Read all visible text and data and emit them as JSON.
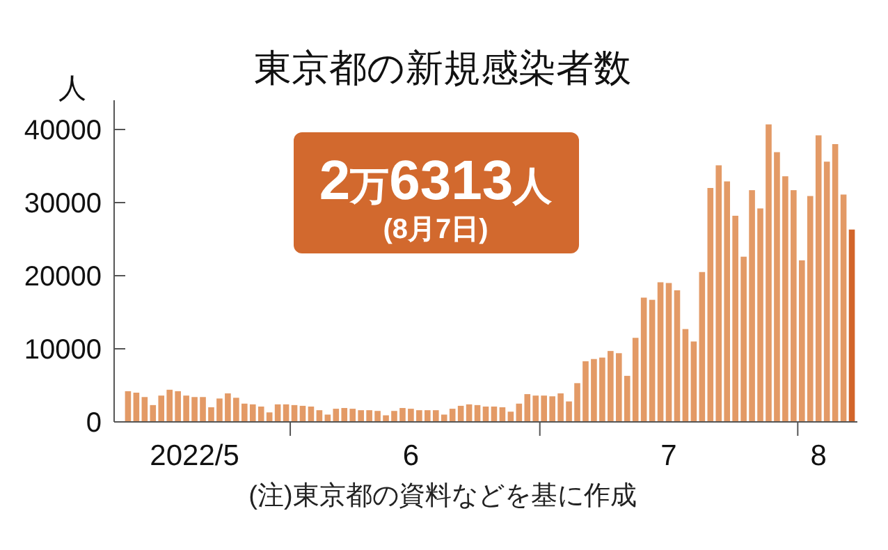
{
  "chart_data": {
    "type": "bar",
    "title": "東京都の新規感染者数",
    "ylabel": "人",
    "x": [
      "2022-05-12",
      "2022-05-13",
      "2022-05-14",
      "2022-05-15",
      "2022-05-16",
      "2022-05-17",
      "2022-05-18",
      "2022-05-19",
      "2022-05-20",
      "2022-05-21",
      "2022-05-22",
      "2022-05-23",
      "2022-05-24",
      "2022-05-25",
      "2022-05-26",
      "2022-05-27",
      "2022-05-28",
      "2022-05-29",
      "2022-05-30",
      "2022-05-31",
      "2022-06-01",
      "2022-06-02",
      "2022-06-03",
      "2022-06-04",
      "2022-06-05",
      "2022-06-06",
      "2022-06-07",
      "2022-06-08",
      "2022-06-09",
      "2022-06-10",
      "2022-06-11",
      "2022-06-12",
      "2022-06-13",
      "2022-06-14",
      "2022-06-15",
      "2022-06-16",
      "2022-06-17",
      "2022-06-18",
      "2022-06-19",
      "2022-06-20",
      "2022-06-21",
      "2022-06-22",
      "2022-06-23",
      "2022-06-24",
      "2022-06-25",
      "2022-06-26",
      "2022-06-27",
      "2022-06-28",
      "2022-06-29",
      "2022-06-30",
      "2022-07-01",
      "2022-07-02",
      "2022-07-03",
      "2022-07-04",
      "2022-07-05",
      "2022-07-06",
      "2022-07-07",
      "2022-07-08",
      "2022-07-09",
      "2022-07-10",
      "2022-07-11",
      "2022-07-12",
      "2022-07-13",
      "2022-07-14",
      "2022-07-15",
      "2022-07-16",
      "2022-07-17",
      "2022-07-18",
      "2022-07-19",
      "2022-07-20",
      "2022-07-21",
      "2022-07-22",
      "2022-07-23",
      "2022-07-24",
      "2022-07-25",
      "2022-07-26",
      "2022-07-27",
      "2022-07-28",
      "2022-07-29",
      "2022-07-30",
      "2022-07-31",
      "2022-08-01",
      "2022-08-02",
      "2022-08-03",
      "2022-08-04",
      "2022-08-05",
      "2022-08-06",
      "2022-08-07"
    ],
    "values": [
      4200,
      4000,
      3400,
      2300,
      3600,
      4400,
      4200,
      3600,
      3400,
      3400,
      2000,
      3200,
      3900,
      3300,
      2500,
      2400,
      2100,
      1300,
      2400,
      2400,
      2300,
      2200,
      2100,
      1600,
      1000,
      1800,
      1900,
      1800,
      1600,
      1600,
      1500,
      900,
      1500,
      1900,
      1800,
      1600,
      1600,
      1600,
      1000,
      1800,
      2200,
      2400,
      2300,
      2100,
      2100,
      2000,
      1400,
      2500,
      3800,
      3600,
      3600,
      3500,
      3900,
      2800,
      5300,
      8300,
      8600,
      8800,
      9700,
      9400,
      6300,
      11500,
      17000,
      16700,
      19100,
      19000,
      18000,
      12700,
      11000,
      20500,
      32000,
      35100,
      32900,
      28200,
      22600,
      31700,
      29200,
      40700,
      36900,
      33600,
      31700,
      22100,
      30900,
      39200,
      35600,
      38000,
      31100,
      26313
    ],
    "colors": [
      "#e39a66",
      "#e39a66",
      "#e39a66",
      "#e39a66",
      "#e39a66",
      "#e39a66",
      "#e39a66",
      "#e39a66",
      "#e39a66",
      "#e39a66",
      "#e39a66",
      "#e39a66",
      "#e39a66",
      "#e39a66",
      "#e39a66",
      "#e39a66",
      "#e39a66",
      "#e39a66",
      "#e39a66",
      "#e39a66",
      "#e39a66",
      "#e39a66",
      "#e39a66",
      "#e39a66",
      "#e39a66",
      "#e39a66",
      "#e39a66",
      "#e39a66",
      "#e39a66",
      "#e39a66",
      "#e39a66",
      "#e39a66",
      "#e39a66",
      "#e39a66",
      "#e39a66",
      "#e39a66",
      "#e39a66",
      "#e39a66",
      "#e39a66",
      "#e39a66",
      "#e39a66",
      "#e39a66",
      "#e39a66",
      "#e39a66",
      "#e39a66",
      "#e39a66",
      "#e39a66",
      "#e39a66",
      "#e39a66",
      "#e39a66",
      "#e39a66",
      "#e39a66",
      "#e39a66",
      "#e39a66",
      "#e39a66",
      "#e39a66",
      "#e39a66",
      "#e39a66",
      "#e39a66",
      "#e39a66",
      "#e39a66",
      "#e39a66",
      "#e39a66",
      "#e39a66",
      "#e39a66",
      "#e39a66",
      "#e39a66",
      "#e39a66",
      "#e39a66",
      "#e39a66",
      "#e39a66",
      "#e39a66",
      "#e39a66",
      "#e39a66",
      "#e39a66",
      "#e39a66",
      "#e39a66",
      "#e39a66",
      "#e39a66",
      "#e39a66",
      "#e39a66",
      "#e39a66",
      "#e39a66",
      "#e39a66",
      "#e39a66",
      "#e39a66",
      "#e39a66",
      "#d2652a"
    ],
    "ylim": [
      0,
      44000
    ],
    "yticks": [
      0,
      10000,
      20000,
      30000,
      40000
    ],
    "xlim": [
      "2022-05-10T08:00",
      "2022-08-07T16:00"
    ],
    "xticks": [
      {
        "value": "2022-05-20",
        "label": "2022/5"
      },
      {
        "value": "2022-05-31T12:00",
        "label": null
      },
      {
        "value": "2022-06-15",
        "label": "6"
      },
      {
        "value": "2022-06-30T12:00",
        "label": null
      },
      {
        "value": "2022-07-16",
        "label": "7"
      },
      {
        "value": "2022-07-31T12:00",
        "label": null
      },
      {
        "value": "2022-08-03",
        "label": "8"
      }
    ],
    "annotations": [
      "2万6313人",
      "(8月7日)",
      "(注)東京都の資料などを基に作成"
    ],
    "grid": false
  }
}
